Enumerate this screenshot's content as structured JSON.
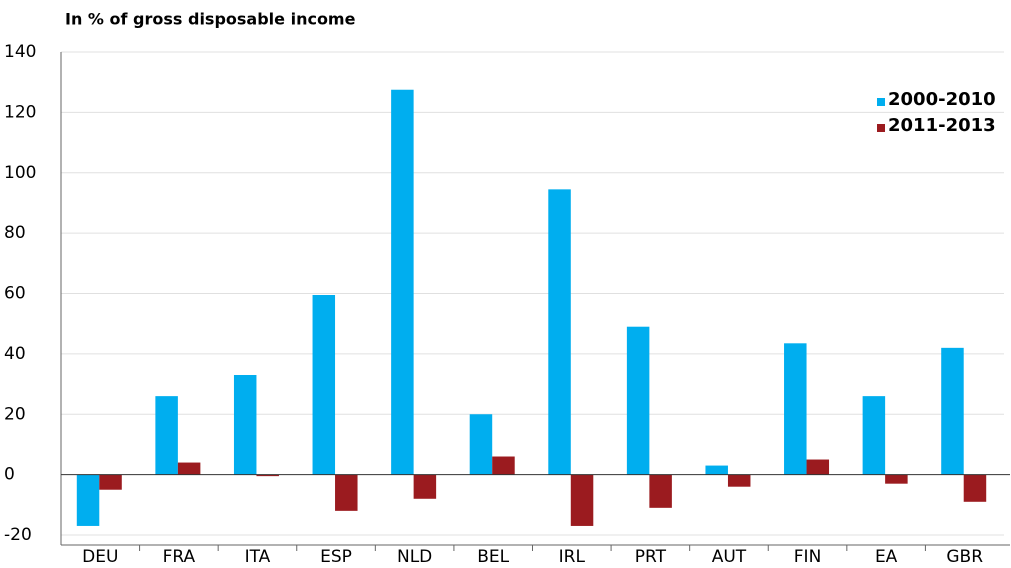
{
  "chart_data": {
    "type": "bar",
    "title": "In % of gross disposable income",
    "categories": [
      "DEU",
      "FRA",
      "ITA",
      "ESP",
      "NLD",
      "BEL",
      "IRL",
      "PRT",
      "AUT",
      "FIN",
      "EA",
      "GBR"
    ],
    "series": [
      {
        "name": "2000-2010",
        "color": "#00aeef",
        "values": [
          -17,
          26,
          33,
          59.5,
          127.5,
          20,
          94.5,
          49,
          3,
          43.5,
          26,
          42
        ]
      },
      {
        "name": "2011-2013",
        "color": "#9b1b1f",
        "values": [
          -5,
          4,
          -0.5,
          -12,
          -8,
          6,
          -17,
          -11,
          -4,
          5,
          -3,
          -9
        ]
      }
    ],
    "ylim": [
      -20,
      140
    ],
    "yticks": [
      -20,
      0,
      20,
      40,
      60,
      80,
      100,
      120,
      140
    ],
    "grid": true,
    "legend": "top-right"
  }
}
